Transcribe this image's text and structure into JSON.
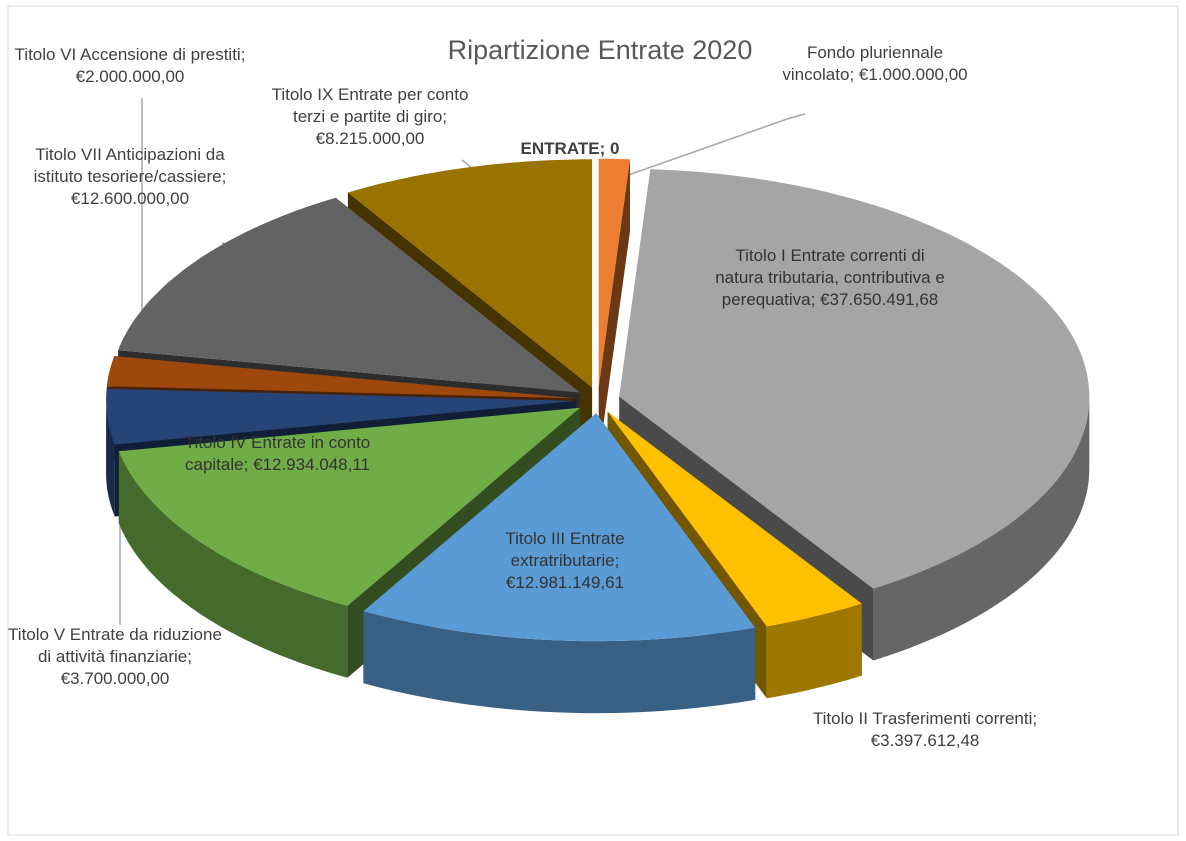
{
  "chart_data": {
    "type": "pie3d",
    "title": "Ripartizione Entrate 2020",
    "categories": [
      "ENTRATE",
      "Fondo pluriennale vincolato",
      "Titolo I Entrate correnti di natura tributaria, contributiva e perequativa",
      "Titolo II Trasferimenti correnti",
      "Titolo III Entrate extratributarie",
      "Titolo IV Entrate in conto capitale",
      "Titolo V Entrate da riduzione di attività finanziarie",
      "Titolo VI Accensione di prestiti",
      "Titolo VII Anticipazioni da istituto tesoriere/cassiere",
      "Titolo IX Entrate per conto terzi e partite di giro"
    ],
    "values": [
      0,
      1000000,
      37650491.68,
      3397612.48,
      12981149.61,
      12934048.11,
      3700000,
      2000000,
      12600000,
      8215000
    ],
    "value_labels": [
      "0",
      "€1.000.000,00",
      "€37.650.491,68",
      "€3.397.612,48",
      "€12.981.149,61",
      "€12.934.048,11",
      "€3.700.000,00",
      "€2.000.000,00",
      "€12.600.000,00",
      "€8.215.000,00"
    ],
    "label_separator": ";",
    "colors": [
      "#4472c4",
      "#ed7d31",
      "#a5a5a5",
      "#ffc000",
      "#5b9bd5",
      "#70ad47",
      "#264478",
      "#9e480e",
      "#636363",
      "#997300"
    ]
  }
}
